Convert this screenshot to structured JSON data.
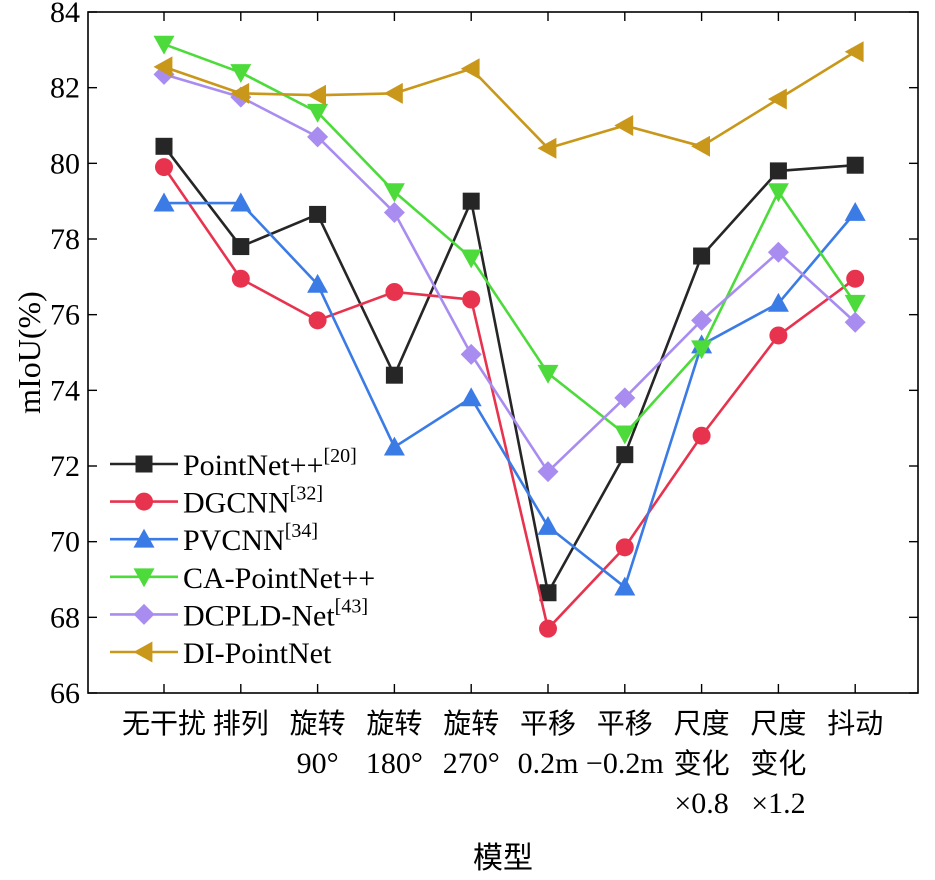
{
  "chart_data": {
    "type": "line",
    "title": "",
    "xlabel": "模型",
    "ylabel": "mIoU(%)",
    "ylim": [
      66,
      84
    ],
    "yticks": [
      66,
      68,
      70,
      72,
      74,
      76,
      78,
      80,
      82,
      84
    ],
    "legend_position": "bottom-left",
    "categories": [
      {
        "lines": [
          "无干扰"
        ]
      },
      {
        "lines": [
          "排列"
        ]
      },
      {
        "lines": [
          "旋转",
          "90°"
        ]
      },
      {
        "lines": [
          "旋转",
          "180°"
        ]
      },
      {
        "lines": [
          "旋转",
          "270°"
        ]
      },
      {
        "lines": [
          "平移",
          "0.2m"
        ]
      },
      {
        "lines": [
          "平移",
          "−0.2m"
        ]
      },
      {
        "lines": [
          "尺度",
          "变化",
          "×0.8"
        ]
      },
      {
        "lines": [
          "尺度",
          "变化",
          "×1.2"
        ]
      },
      {
        "lines": [
          "抖动"
        ]
      }
    ],
    "series": [
      {
        "name": "PointNet++",
        "sup": "[20]",
        "color": "#262626",
        "marker": "square",
        "values": [
          80.45,
          77.8,
          78.65,
          74.4,
          79.0,
          68.65,
          72.3,
          77.55,
          79.8,
          79.95
        ]
      },
      {
        "name": "DGCNN",
        "sup": "[32]",
        "color": "#e8334f",
        "marker": "circle",
        "values": [
          79.9,
          76.95,
          75.85,
          76.6,
          76.4,
          67.7,
          69.85,
          72.8,
          75.45,
          76.95
        ]
      },
      {
        "name": "PVCNN",
        "sup": "[34]",
        "color": "#3b7be6",
        "marker": "triangle-up",
        "values": [
          78.95,
          78.95,
          76.8,
          72.5,
          73.8,
          70.4,
          68.8,
          75.2,
          76.3,
          78.7
        ]
      },
      {
        "name": "CA-PointNet++",
        "sup": "",
        "color": "#4ddb3c",
        "marker": "triangle-down",
        "values": [
          83.15,
          82.4,
          81.35,
          79.25,
          77.5,
          74.45,
          72.85,
          75.1,
          79.25,
          76.3
        ]
      },
      {
        "name": "DCPLD-Net",
        "sup": "[43]",
        "color": "#a98cf0",
        "marker": "diamond",
        "values": [
          82.35,
          81.75,
          80.7,
          78.7,
          74.95,
          71.85,
          73.8,
          75.85,
          77.65,
          75.8
        ]
      },
      {
        "name": "DI-PointNet",
        "sup": "",
        "color": "#c9971a",
        "marker": "triangle-left",
        "values": [
          82.55,
          81.85,
          81.8,
          81.85,
          82.5,
          80.4,
          81.0,
          80.45,
          81.7,
          82.95
        ]
      }
    ]
  }
}
